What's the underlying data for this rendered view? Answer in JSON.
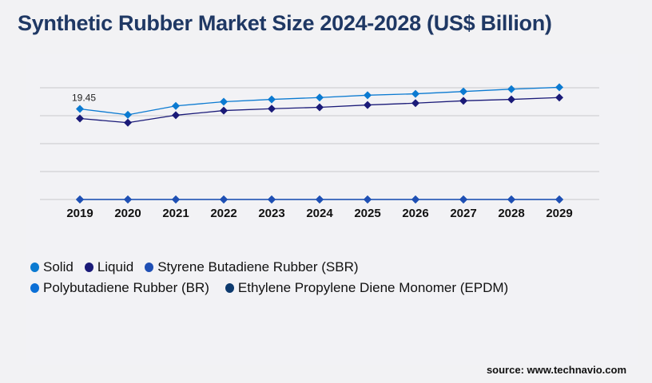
{
  "title": "Synthetic Rubber Market Size 2024-2028 (US$ Billion)",
  "source": "source: www.technavio.com",
  "chart_data": {
    "type": "line",
    "title": "Synthetic Rubber Market Size 2024-2028 (US$ Billion)",
    "xlabel": "",
    "ylabel": "",
    "x": [
      "2019",
      "2020",
      "2021",
      "2022",
      "2023",
      "2024",
      "2025",
      "2026",
      "2027",
      "2028",
      "2029"
    ],
    "ylim": [
      0,
      24
    ],
    "yticks": [
      0,
      6,
      12,
      18,
      24
    ],
    "grid": true,
    "legend_position": "bottom-left",
    "annotations": [
      {
        "series": "Solid",
        "x": "2019",
        "label": "19.45"
      }
    ],
    "series": [
      {
        "name": "Solid",
        "color": "#0b7ad1",
        "values": [
          19.45,
          18.2,
          20.1,
          21.0,
          21.5,
          21.9,
          22.4,
          22.7,
          23.2,
          23.7,
          24.1
        ]
      },
      {
        "name": "Liquid",
        "color": "#1a1a78",
        "values": [
          17.4,
          16.5,
          18.1,
          19.1,
          19.5,
          19.8,
          20.3,
          20.7,
          21.2,
          21.5,
          21.9
        ]
      },
      {
        "name": "Styrene Butadiene Rubber (SBR)",
        "color": "#1f4fb4",
        "values": [
          0,
          0,
          0,
          0,
          0,
          0,
          0,
          0,
          0,
          0,
          0
        ]
      },
      {
        "name": "Polybutadiene Rubber (BR)",
        "color": "#0b6fd6",
        "values": [
          0,
          0,
          0,
          0,
          0,
          0,
          0,
          0,
          0,
          0,
          0
        ]
      },
      {
        "name": "Ethylene Propylene Diene Monomer (EPDM)",
        "color": "#0d3a6e",
        "values": [
          0,
          0,
          0,
          0,
          0,
          0,
          0,
          0,
          0,
          0,
          0
        ]
      }
    ]
  }
}
